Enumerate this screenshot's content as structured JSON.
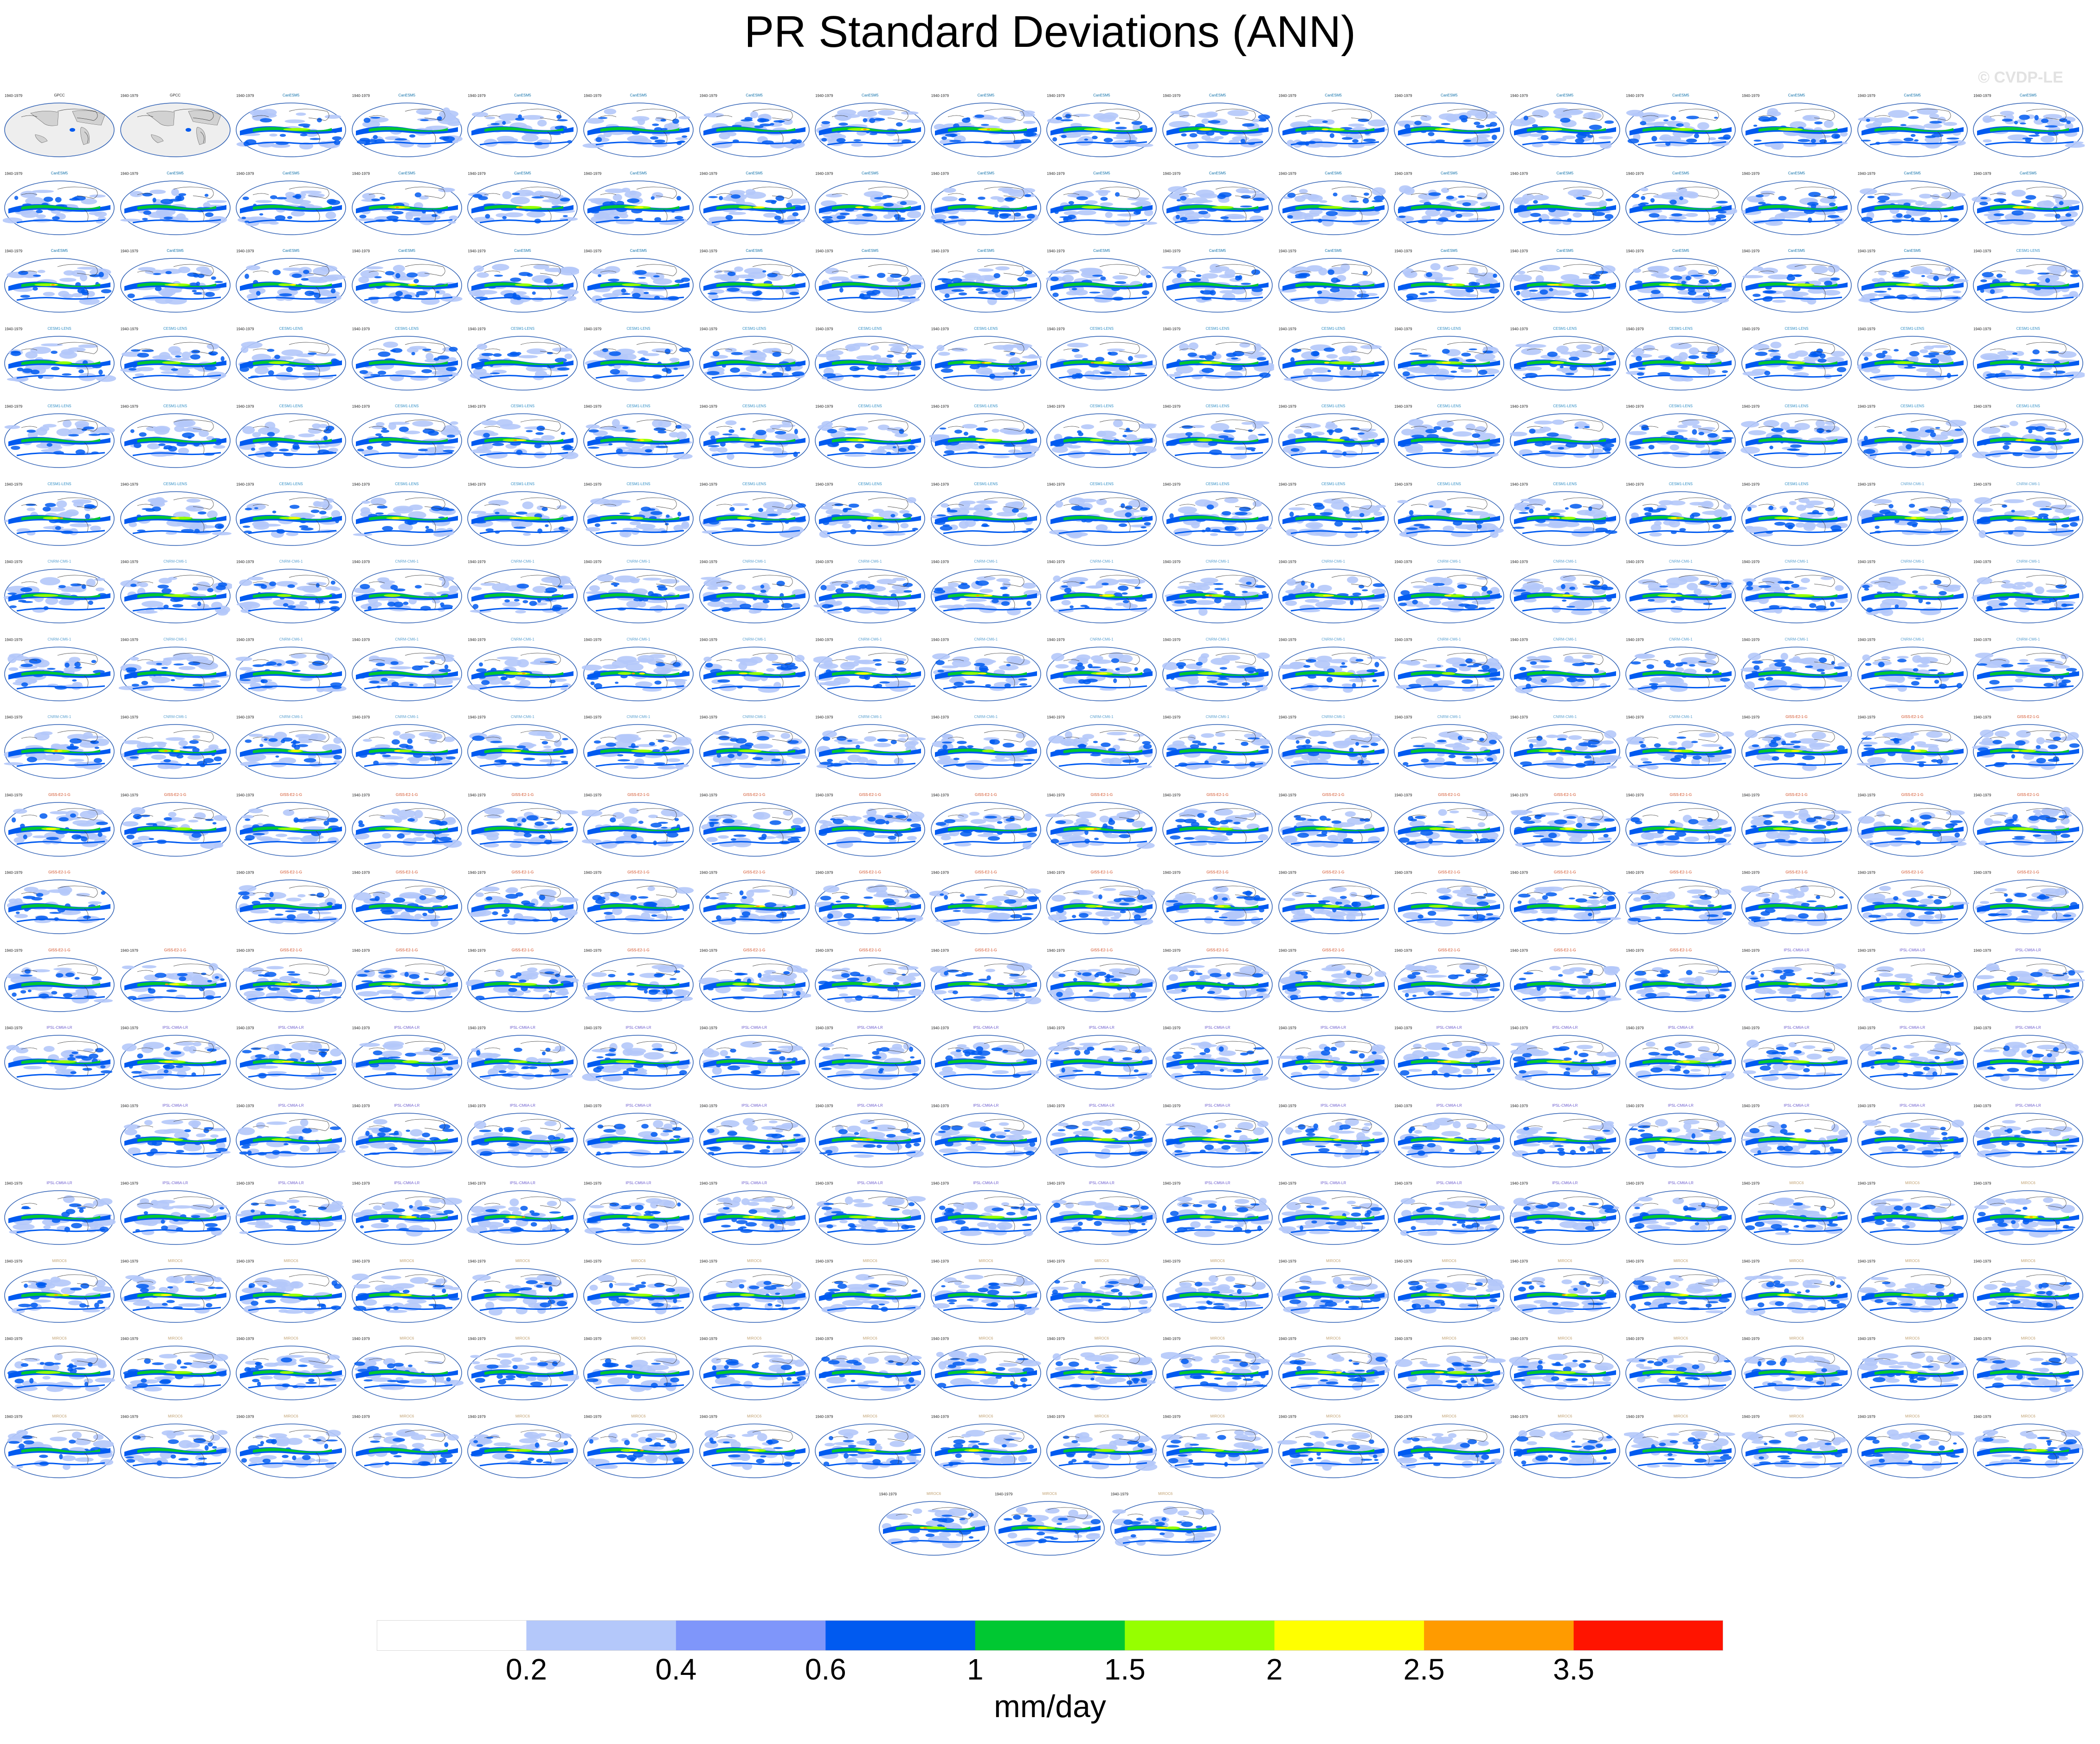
{
  "title": "PR Standard Deviations (ANN)",
  "watermark": "© CVDP-LE",
  "colorbar": {
    "labels": [
      "0.2",
      "0.4",
      "0.6",
      "1",
      "1.5",
      "2",
      "2.5",
      "3.5"
    ],
    "colors": [
      "#ffffff",
      "#b4c8fa",
      "#7f96fa",
      "#005af0",
      "#00c832",
      "#96ff00",
      "#ffff00",
      "#ff9b00",
      "#ff1400"
    ],
    "units": "mm/day"
  },
  "panels": {
    "rows": [
      18,
      18,
      18,
      18,
      18,
      18,
      18,
      18,
      18,
      18,
      17,
      18,
      18,
      17,
      18,
      18,
      18,
      18,
      3
    ],
    "skipped": [
      [
        10,
        1
      ],
      [
        13,
        0
      ]
    ],
    "observation_label": "GPCC",
    "years_label": "1940-1979",
    "model_groups": [
      {
        "name": "CanESM5",
        "color": "#0b6ea8"
      },
      {
        "name": "CESM1-LENS",
        "color": "#2b8bc4"
      },
      {
        "name": "CNRM-CM6-1",
        "color": "#5aa0d0"
      },
      {
        "name": "GISS-E2-1-G",
        "color": "#d0491f"
      },
      {
        "name": "IPSL-CM6A-LR",
        "color": "#6a5acd"
      },
      {
        "name": "MIROC6",
        "color": "#c0a070"
      }
    ]
  }
}
